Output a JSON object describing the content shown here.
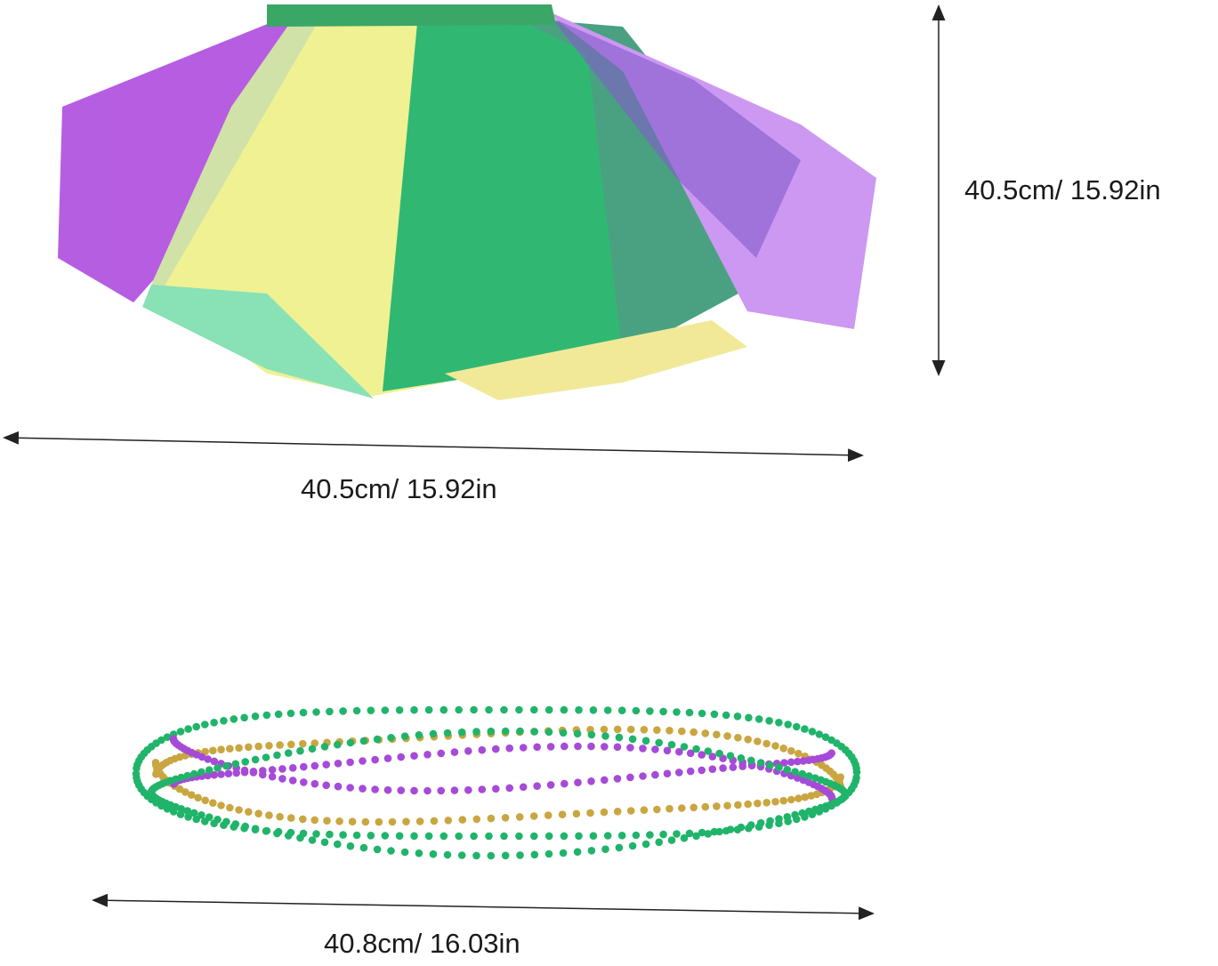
{
  "dimensions": {
    "tutu_height": "40.5cm/ 15.92in",
    "tutu_width": "40.5cm/ 15.92in",
    "necklace_length": "40.8cm/ 16.03in"
  },
  "colors": {
    "purple": "#a64ad8",
    "yellow": "#eef08a",
    "green": "#20b46a",
    "gold": "#c9a640",
    "arrow": "#222222"
  }
}
